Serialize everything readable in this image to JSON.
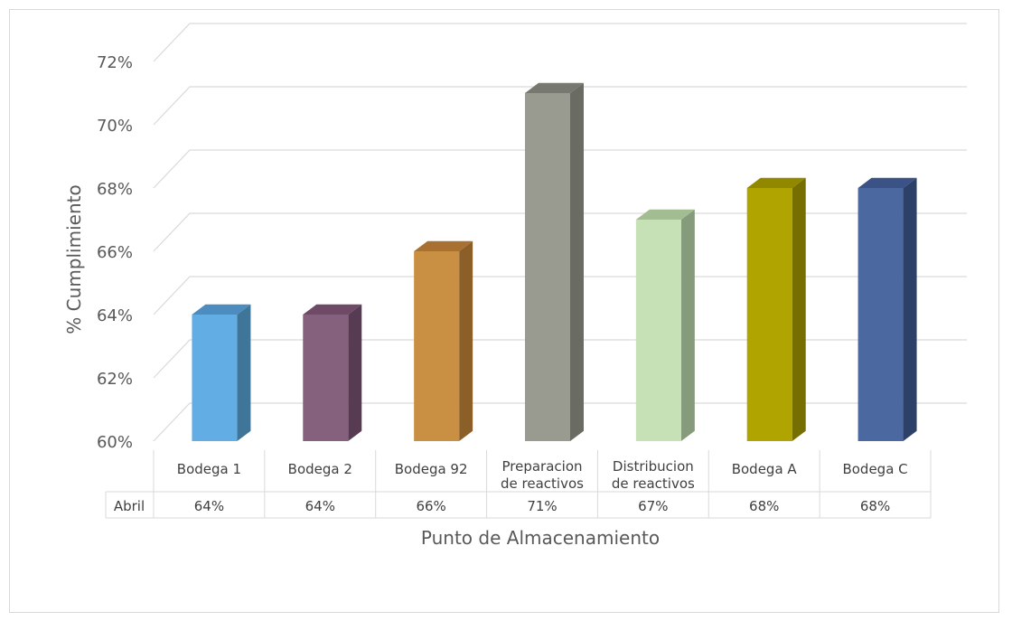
{
  "chart_data": {
    "type": "bar",
    "categories": [
      [
        "Bodega 1"
      ],
      [
        "Bodega 2"
      ],
      [
        "Bodega 92"
      ],
      [
        "Preparacion",
        "de reactivos"
      ],
      [
        "Distribucion",
        "de reactivos"
      ],
      [
        "Bodega A"
      ],
      [
        "Bodega C"
      ]
    ],
    "series": [
      {
        "name": "Abril",
        "values": [
          0.64,
          0.64,
          0.66,
          0.71,
          0.67,
          0.68,
          0.68
        ],
        "labels": [
          "64%",
          "64%",
          "66%",
          "71%",
          "67%",
          "68%",
          "68%"
        ]
      }
    ],
    "colors": [
      "#62AEE4",
      "#86617E",
      "#C98F43",
      "#999A90",
      "#C6E1B6",
      "#AFA400",
      "#4B68A0"
    ],
    "side_colors": [
      "#3E7598",
      "#563B53",
      "#8C5E28",
      "#6A6B62",
      "#869A7C",
      "#766E00",
      "#2D4068"
    ],
    "top_colors": [
      "#4D8CBF",
      "#6E4A66",
      "#A87131",
      "#777870",
      "#A3BD92",
      "#928800",
      "#3A5285"
    ],
    "xlabel": "Punto de Almacenamiento",
    "ylabel": "% Cumplimiento",
    "ylim": [
      0.6,
      0.72
    ],
    "yticks": [
      "60%",
      "62%",
      "64%",
      "66%",
      "68%",
      "70%",
      "72%"
    ],
    "grid": true,
    "legend": "table"
  }
}
